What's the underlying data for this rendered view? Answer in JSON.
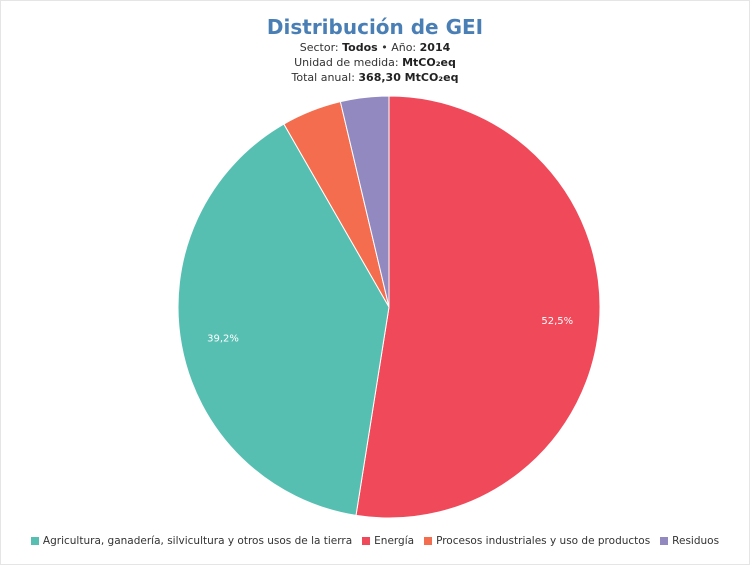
{
  "chart_data": {
    "type": "pie",
    "title": "Distribución de GEI",
    "subtitle": {
      "sector_label": "Sector:",
      "sector_value": "Todos",
      "bullet": "•",
      "year_label": "Año:",
      "year_value": "2014",
      "unit_label": "Unidad de medida:",
      "unit_value": "MtCO₂eq",
      "total_label": "Total anual:",
      "total_value": "368,30 MtCO₂eq"
    },
    "slices": [
      {
        "name": "Energía",
        "value": 52.5,
        "label": "52,5%",
        "color": "#f0495a"
      },
      {
        "name": "Agricultura, ganadería, silvicultura y otros usos de la tierra",
        "value": 39.2,
        "label": "39,2%",
        "color": "#57bfb2"
      },
      {
        "name": "Procesos industriales y uso de productos",
        "value": 4.6,
        "label": "",
        "color": "#f46d4e"
      },
      {
        "name": "Residuos",
        "value": 3.7,
        "label": "",
        "color": "#9189bf"
      }
    ],
    "legend": {
      "placement": "bottom",
      "items": [
        {
          "name": "Agricultura, ganadería, silvicultura y otros usos de la tierra",
          "color": "#57bfb2"
        },
        {
          "name": "Energía",
          "color": "#f0495a"
        },
        {
          "name": "Procesos industriales y uso de productos",
          "color": "#f46d4e"
        },
        {
          "name": "Residuos",
          "color": "#9189bf"
        }
      ]
    }
  }
}
